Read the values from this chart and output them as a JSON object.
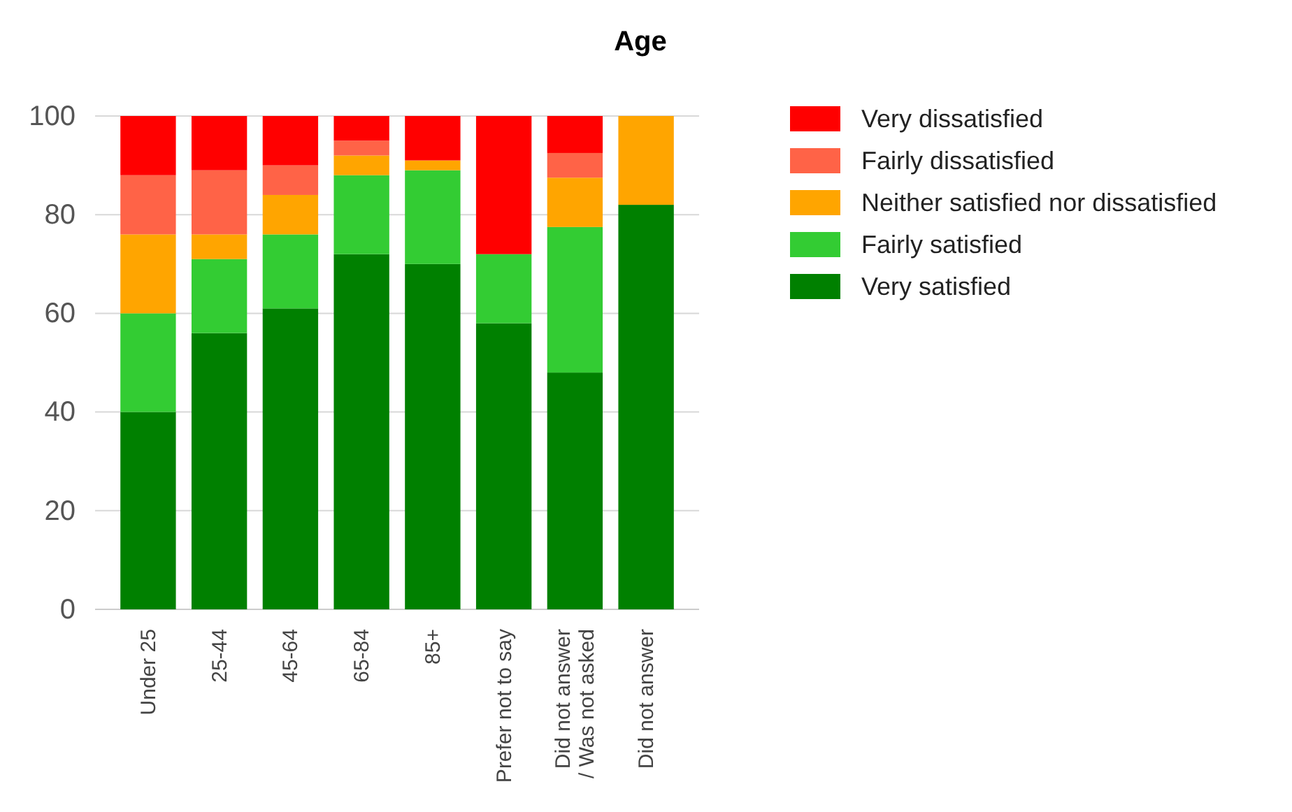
{
  "chart_data": {
    "type": "bar",
    "title": "Age",
    "stacked": true,
    "categories": [
      "Under 25",
      "25-44",
      "45-64",
      "65-84",
      "85+",
      "Prefer not to say",
      "Did not answer / Was not asked",
      "Did not answer"
    ],
    "series": [
      {
        "name": "Very satisfied",
        "color": "#008000",
        "values": [
          40,
          56,
          61,
          72,
          70,
          58,
          48,
          82
        ]
      },
      {
        "name": "Fairly satisfied",
        "color": "#33cc33",
        "values": [
          20,
          15,
          15,
          16,
          19,
          14,
          29.5,
          0
        ]
      },
      {
        "name": "Neither satisfied nor dissatisfied",
        "color": "#ffa500",
        "values": [
          16,
          5,
          8,
          4,
          2,
          0,
          10,
          18
        ]
      },
      {
        "name": "Fairly dissatisfied",
        "color": "#ff6347",
        "values": [
          12,
          13,
          6,
          3,
          0,
          0,
          5,
          0
        ]
      },
      {
        "name": "Very dissatisfied",
        "color": "#ff0000",
        "values": [
          12,
          11,
          10,
          5,
          9,
          28,
          7.5,
          0
        ]
      }
    ],
    "ylim": [
      0,
      100
    ],
    "yticks": [
      0,
      20,
      40,
      60,
      80,
      100
    ],
    "grid": "y",
    "legend": "top right"
  }
}
